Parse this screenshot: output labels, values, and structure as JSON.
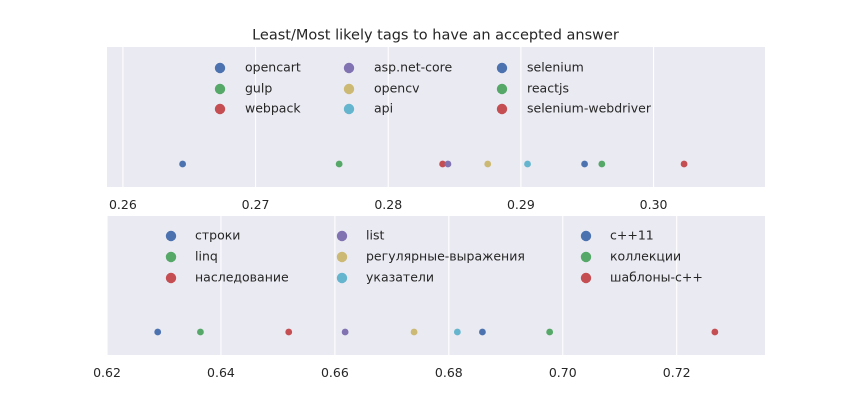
{
  "chart_data": [
    {
      "type": "scatter",
      "title": "Least/Most likely tags to have an accepted answer",
      "xlim": [
        0.2588,
        0.3084
      ],
      "xticks": [
        0.26,
        0.27,
        0.28,
        0.29,
        0.3
      ],
      "xtick_labels": [
        "0.26",
        "0.27",
        "0.28",
        "0.29",
        "0.30"
      ],
      "grid": true,
      "legend_position": "top-center",
      "series": [
        {
          "name": "opencart",
          "x": 0.2645,
          "color": "#4c72b0"
        },
        {
          "name": "gulp",
          "x": 0.2763,
          "color": "#55a868"
        },
        {
          "name": "webpack",
          "x": 0.2841,
          "color": "#c44e52"
        },
        {
          "name": "asp.net-core",
          "x": 0.2845,
          "color": "#8172b2"
        },
        {
          "name": "opencv",
          "x": 0.2875,
          "color": "#ccb974"
        },
        {
          "name": "api",
          "x": 0.2905,
          "color": "#64b5cd"
        },
        {
          "name": "selenium",
          "x": 0.2948,
          "color": "#4c72b0"
        },
        {
          "name": "reactjs",
          "x": 0.2961,
          "color": "#55a868"
        },
        {
          "name": "selenium-webdriver",
          "x": 0.3023,
          "color": "#c44e52"
        }
      ]
    },
    {
      "type": "scatter",
      "title": "",
      "xlim": [
        0.62,
        0.7355
      ],
      "xticks": [
        0.62,
        0.64,
        0.66,
        0.68,
        0.7,
        0.72
      ],
      "xtick_labels": [
        "0.62",
        "0.64",
        "0.66",
        "0.68",
        "0.70",
        "0.72"
      ],
      "grid": true,
      "legend_position": "top-center",
      "series": [
        {
          "name": "строки",
          "x": 0.6289,
          "color": "#4c72b0"
        },
        {
          "name": "linq",
          "x": 0.6364,
          "color": "#55a868"
        },
        {
          "name": "наследование",
          "x": 0.6519,
          "color": "#c44e52"
        },
        {
          "name": "list",
          "x": 0.6618,
          "color": "#8172b2"
        },
        {
          "name": "регулярные-выражения",
          "x": 0.6739,
          "color": "#ccb974"
        },
        {
          "name": "указатели",
          "x": 0.6815,
          "color": "#64b5cd"
        },
        {
          "name": "с++11",
          "x": 0.6859,
          "color": "#4c72b0"
        },
        {
          "name": "коллекции",
          "x": 0.6977,
          "color": "#55a868"
        },
        {
          "name": "шаблоны-с++",
          "x": 0.7267,
          "color": "#c44e52"
        }
      ]
    }
  ]
}
